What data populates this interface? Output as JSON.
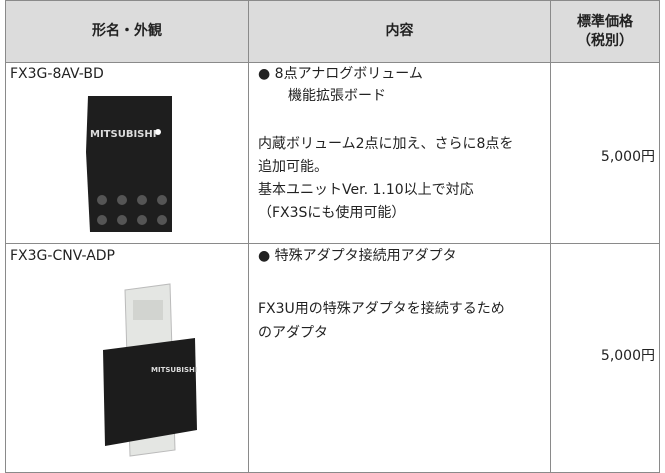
{
  "table": {
    "headers": [
      "形名・外観",
      "内容",
      [
        "標準価格",
        "（税別）"
      ]
    ],
    "rows": [
      {
        "model": "FX3G-8AV-BD",
        "image_label": "MITSUBISHI",
        "heading": [
          "● 8点アナログボリューム",
          "機能拡張ボード"
        ],
        "description": [
          "内蔵ボリューム2点に加え、さらに8点を",
          "追加可能。",
          "基本ユニットVer. 1.10以上で対応",
          "（FX3Sにも使用可能）"
        ],
        "price": "5,000円"
      },
      {
        "model": "FX3G-CNV-ADP",
        "image_label": "MITSUBISHI",
        "heading": [
          "● 特殊アダプタ接続用アダプタ"
        ],
        "description": [
          "FX3U用の特殊アダプタを接続するため",
          "のアダプタ"
        ],
        "price": "5,000円"
      }
    ]
  }
}
